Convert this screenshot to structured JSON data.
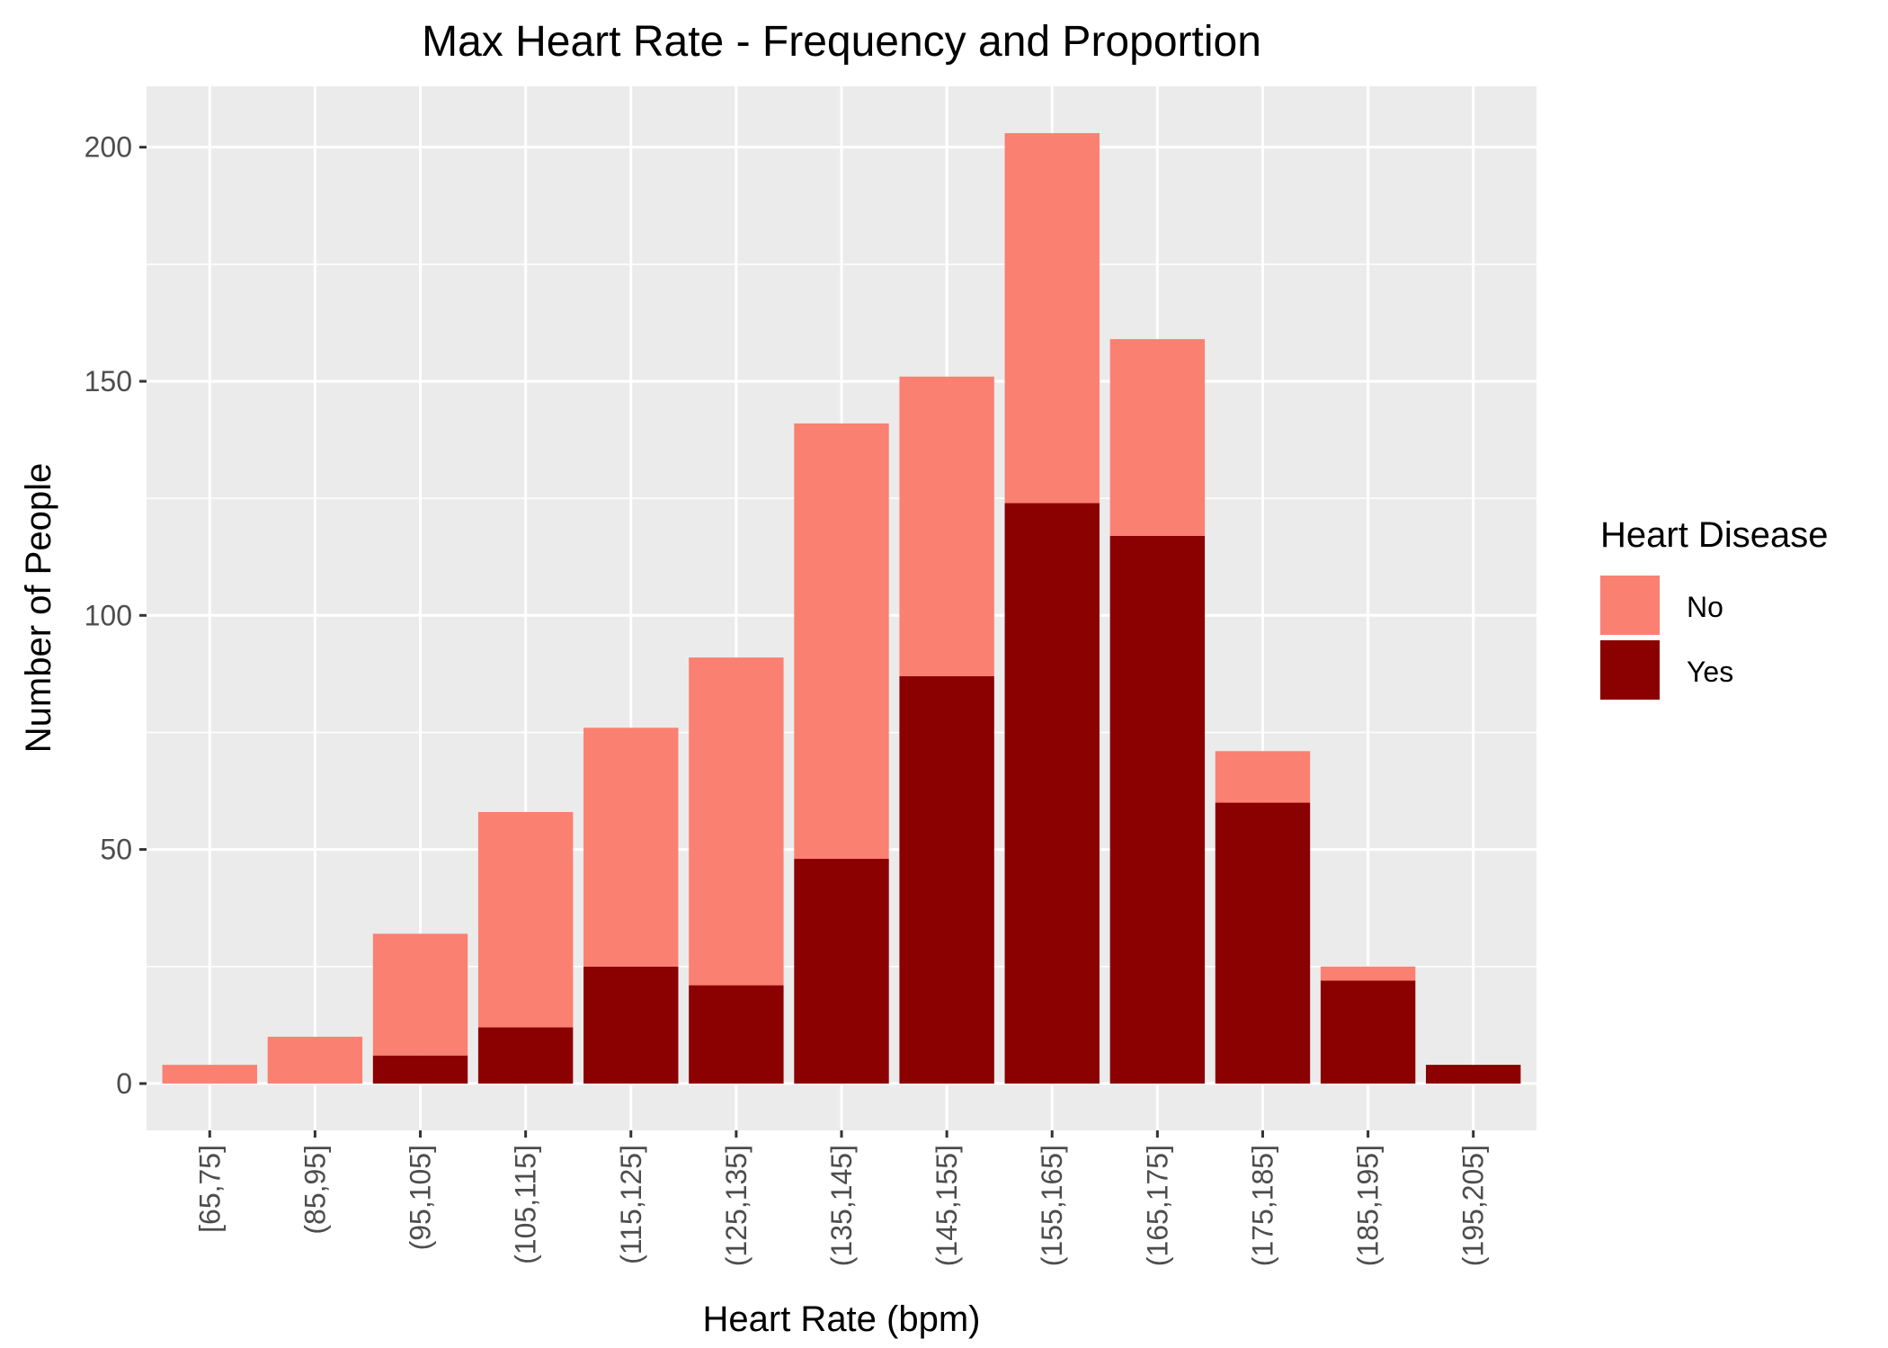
{
  "chart_data": {
    "type": "bar",
    "stacked": true,
    "title": "Max Heart Rate - Frequency and Proportion",
    "xlabel": "Heart Rate (bpm)",
    "ylabel": "Number of People",
    "categories": [
      "[65,75]",
      "(85,95]",
      "(95,105]",
      "(105,115]",
      "(115,125]",
      "(125,135]",
      "(135,145]",
      "(145,155]",
      "(155,165]",
      "(165,175]",
      "(175,185]",
      "(185,195]",
      "(195,205]"
    ],
    "series": [
      {
        "name": "No",
        "color": "#FA8072",
        "values": [
          4,
          10,
          26,
          46,
          51,
          70,
          93,
          64,
          79,
          42,
          11,
          3,
          0
        ]
      },
      {
        "name": "Yes",
        "color": "#8B0000",
        "values": [
          0,
          0,
          6,
          12,
          25,
          21,
          48,
          87,
          124,
          117,
          60,
          22,
          4
        ]
      }
    ],
    "yticks": [
      0,
      50,
      100,
      150,
      200
    ],
    "ylim": [
      -10,
      213
    ],
    "grid": true,
    "legend": {
      "title": "Heart Disease",
      "position": "right",
      "entries": [
        "No",
        "Yes"
      ]
    },
    "panel_background": "#EBEBEB"
  }
}
